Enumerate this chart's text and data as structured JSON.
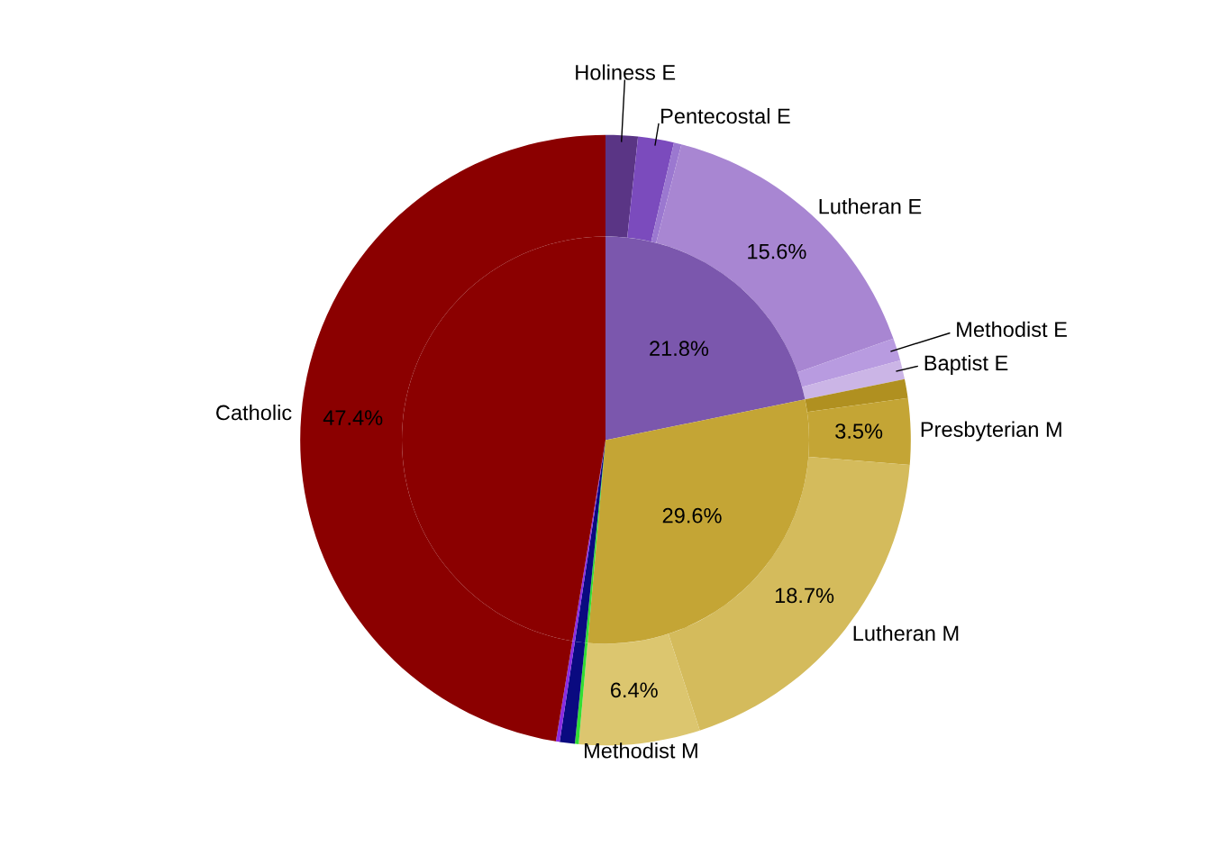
{
  "chart_data": {
    "type": "pie",
    "categories": [
      "Holiness E",
      "Pentecostal E",
      null,
      "Lutheran E",
      "Methodist E",
      "Baptist E",
      null,
      "Presbyterian M",
      "Lutheran M",
      "Methodist M",
      null,
      null,
      null,
      "Catholic"
    ],
    "series": [
      {
        "values": [
          1.7,
          1.9,
          0.4,
          15.6,
          1.2,
          1.0,
          1.0,
          3.5,
          18.7,
          6.4,
          0.2,
          0.8,
          0.2,
          47.4
        ],
        "colors": [
          "#5a3585",
          "#7b4bbd",
          "#9b78d0",
          "#a886d2",
          "#b89be0",
          "#cbb5e6",
          "#b09020",
          "#c4a535",
          "#d4bb5c",
          "#dcc66f",
          "#33dd33",
          "#0a0a80",
          "#8a2be2",
          "#8b0000"
        ],
        "value_labels": [
          null,
          null,
          null,
          "15.6%",
          null,
          null,
          null,
          "3.5%",
          "18.7%",
          "6.4%",
          null,
          null,
          null,
          "47.4%"
        ]
      },
      {
        "values": [
          21.8,
          null,
          null,
          null,
          null,
          null,
          29.6,
          null,
          null,
          null,
          0.2,
          0.8,
          0.2,
          47.4
        ],
        "colors": [
          "#7b57ad",
          null,
          null,
          null,
          null,
          null,
          "#c4a535",
          null,
          null,
          null,
          "#33dd33",
          "#0a0a80",
          "#8a2be2",
          "#8b0000"
        ],
        "value_labels": [
          "21.8%",
          null,
          null,
          null,
          null,
          null,
          "29.6%",
          null,
          null,
          null,
          null,
          null,
          null,
          null
        ]
      }
    ]
  }
}
